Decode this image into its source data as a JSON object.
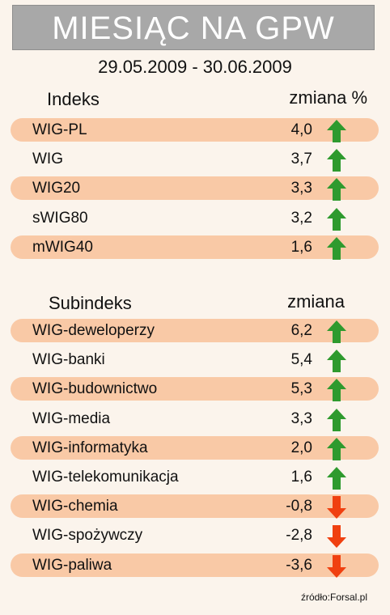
{
  "title": "MIESIĄC NA GPW",
  "date_range": "29.05.2009 - 30.06.2009",
  "source": "źródło:Forsal.pl",
  "colors": {
    "row_shade": "#f9c9a6",
    "up_arrow": "#2e9a2e",
    "down_arrow": "#f04010",
    "title_bg": "#a8a8a8"
  },
  "chart_data": {
    "type": "table",
    "title": "MIESIĄC NA GPW",
    "subtitle": "29.05.2009 - 30.06.2009",
    "sections": [
      {
        "name_header": "Indeks",
        "value_header": "zmiana %",
        "rows": [
          {
            "name": "WIG-PL",
            "value": 4.0,
            "label": "4,0",
            "direction": "up"
          },
          {
            "name": "WIG",
            "value": 3.7,
            "label": "3,7",
            "direction": "up"
          },
          {
            "name": "WIG20",
            "value": 3.3,
            "label": "3,3",
            "direction": "up"
          },
          {
            "name": "sWIG80",
            "value": 3.2,
            "label": "3,2",
            "direction": "up"
          },
          {
            "name": "mWIG40",
            "value": 1.6,
            "label": "1,6",
            "direction": "up"
          }
        ]
      },
      {
        "name_header": "Subindeks",
        "value_header": "zmiana",
        "rows": [
          {
            "name": "WIG-deweloperzy",
            "value": 6.2,
            "label": "6,2",
            "direction": "up"
          },
          {
            "name": "WIG-banki",
            "value": 5.4,
            "label": "5,4",
            "direction": "up"
          },
          {
            "name": "WIG-budownictwo",
            "value": 5.3,
            "label": "5,3",
            "direction": "up"
          },
          {
            "name": "WIG-media",
            "value": 3.3,
            "label": "3,3",
            "direction": "up"
          },
          {
            "name": "WIG-informatyka",
            "value": 2.0,
            "label": "2,0",
            "direction": "up"
          },
          {
            "name": "WIG-telekomunikacja",
            "value": 1.6,
            "label": "1,6",
            "direction": "up"
          },
          {
            "name": "WIG-chemia",
            "value": -0.8,
            "label": "-0,8",
            "direction": "down"
          },
          {
            "name": "WIG-spożywczy",
            "value": -2.8,
            "label": "-2,8",
            "direction": "down"
          },
          {
            "name": "WIG-paliwa",
            "value": -3.6,
            "label": "-3,6",
            "direction": "down"
          }
        ]
      }
    ]
  }
}
